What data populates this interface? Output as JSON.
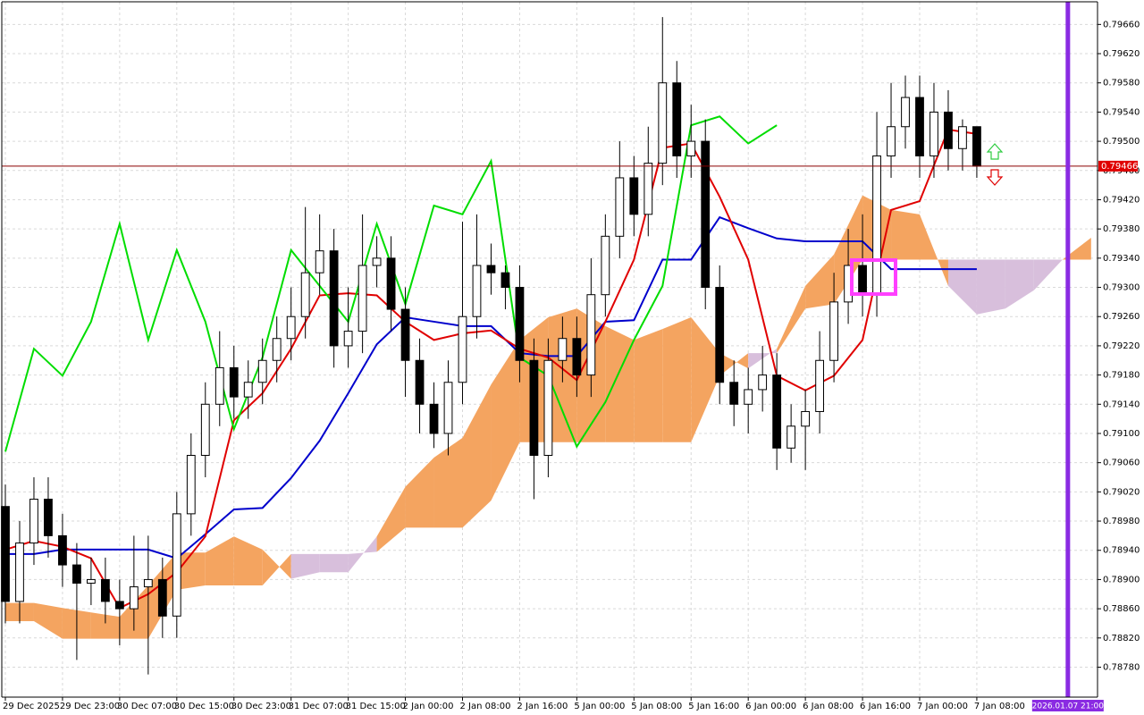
{
  "chart_data": {
    "type": "candlestick",
    "xlim": [
      -0.5,
      152.9
    ],
    "ylim": [
      0.78739,
      0.79691
    ],
    "grid": true,
    "xticks": [
      {
        "value": 0,
        "label": "29 Dec 2025"
      },
      {
        "value": 8,
        "label": "29 Dec 23:00"
      },
      {
        "value": 16,
        "label": "30 Dec 07:00"
      },
      {
        "value": 24,
        "label": "30 Dec 15:00"
      },
      {
        "value": 32,
        "label": "30 Dec 23:00"
      },
      {
        "value": 40,
        "label": "31 Dec 07:00"
      },
      {
        "value": 48,
        "label": "31 Dec 15:00"
      },
      {
        "value": 56,
        "label": "2 Jan 00:00"
      },
      {
        "value": 64,
        "label": "2 Jan 08:00"
      },
      {
        "value": 72,
        "label": "2 Jan 16:00"
      },
      {
        "value": 80,
        "label": "5 Jan 00:00"
      },
      {
        "value": 88,
        "label": "5 Jan 08:00"
      },
      {
        "value": 96,
        "label": "5 Jan 16:00"
      },
      {
        "value": 104,
        "label": "6 Jan 00:00"
      },
      {
        "value": 112,
        "label": "6 Jan 08:00"
      },
      {
        "value": 120,
        "label": "6 Jan 16:00"
      },
      {
        "value": 128,
        "label": "7 Jan 00:00"
      },
      {
        "value": 136,
        "label": "7 Jan 08:00"
      }
    ],
    "yticks": [
      {
        "value": 0.7966,
        "label": "0.79660"
      },
      {
        "value": 0.7962,
        "label": "0.79620"
      },
      {
        "value": 0.7958,
        "label": "0.79580"
      },
      {
        "value": 0.7954,
        "label": "0.79540"
      },
      {
        "value": 0.795,
        "label": "0.79500"
      },
      {
        "value": 0.7946,
        "label": "0.79460"
      },
      {
        "value": 0.7942,
        "label": "0.79420"
      },
      {
        "value": 0.7938,
        "label": "0.79380"
      },
      {
        "value": 0.7934,
        "label": "0.79340"
      },
      {
        "value": 0.793,
        "label": "0.79300"
      },
      {
        "value": 0.7926,
        "label": "0.79260"
      },
      {
        "value": 0.7922,
        "label": "0.79220"
      },
      {
        "value": 0.7918,
        "label": "0.79180"
      },
      {
        "value": 0.7914,
        "label": "0.79140"
      },
      {
        "value": 0.791,
        "label": "0.79100"
      },
      {
        "value": 0.7906,
        "label": "0.79060"
      },
      {
        "value": 0.7902,
        "label": "0.79020"
      },
      {
        "value": 0.7898,
        "label": "0.78980"
      },
      {
        "value": 0.7894,
        "label": "0.78940"
      },
      {
        "value": 0.789,
        "label": "0.78900"
      },
      {
        "value": 0.7886,
        "label": "0.78860"
      },
      {
        "value": 0.7882,
        "label": "0.78820"
      },
      {
        "value": 0.7878,
        "label": "0.78780"
      }
    ],
    "candles": {
      "up_color": "#ffffff",
      "down_color": "#000000",
      "edge_color": "#000000",
      "x": [
        0,
        2,
        4,
        6,
        8,
        10,
        12,
        14,
        16,
        18,
        20,
        22,
        24,
        26,
        28,
        30,
        32,
        34,
        36,
        38,
        40,
        42,
        44,
        46,
        48,
        50,
        52,
        54,
        56,
        58,
        60,
        62,
        64,
        66,
        68,
        70,
        72,
        74,
        76,
        78,
        80,
        82,
        84,
        86,
        88,
        90,
        92,
        94,
        96,
        98,
        100,
        102,
        104,
        106,
        108,
        110,
        112,
        114,
        116,
        118,
        120,
        122,
        124,
        126,
        128,
        130,
        132,
        134,
        136
      ],
      "open": [
        0.79,
        0.7887,
        0.7895,
        0.7901,
        0.7896,
        0.7892,
        0.78895,
        0.789,
        0.7887,
        0.7886,
        0.7889,
        0.789,
        0.7885,
        0.7899,
        0.7907,
        0.7914,
        0.7919,
        0.7915,
        0.7917,
        0.792,
        0.7923,
        0.7926,
        0.7932,
        0.7935,
        0.7922,
        0.7924,
        0.7933,
        0.7934,
        0.7927,
        0.792,
        0.7914,
        0.791,
        0.7917,
        0.7926,
        0.7933,
        0.7932,
        0.793,
        0.792,
        0.7907,
        0.792,
        0.7923,
        0.7918,
        0.7929,
        0.7937,
        0.7945,
        0.794,
        0.7947,
        0.7958,
        0.7948,
        0.795,
        0.793,
        0.7917,
        0.7914,
        0.7916,
        0.7918,
        0.7908,
        0.7911,
        0.7913,
        0.792,
        0.7928,
        0.7933,
        0.7929,
        0.7948,
        0.7952,
        0.7956,
        0.7948,
        0.7954,
        0.7949,
        0.7952
      ],
      "high": [
        0.7903,
        0.7898,
        0.7904,
        0.7904,
        0.7899,
        0.7895,
        0.7893,
        0.7893,
        0.789,
        0.7896,
        0.7896,
        0.7893,
        0.7902,
        0.791,
        0.7917,
        0.7924,
        0.7922,
        0.792,
        0.7923,
        0.7926,
        0.793,
        0.7941,
        0.794,
        0.7938,
        0.793,
        0.794,
        0.7937,
        0.7937,
        0.793,
        0.7923,
        0.7917,
        0.792,
        0.7939,
        0.794,
        0.7936,
        0.7933,
        0.7933,
        0.7923,
        0.7923,
        0.7926,
        0.7926,
        0.7934,
        0.794,
        0.795,
        0.7948,
        0.7952,
        0.7967,
        0.7961,
        0.7955,
        0.7953,
        0.7933,
        0.792,
        0.7919,
        0.7922,
        0.7921,
        0.7914,
        0.7916,
        0.7924,
        0.7932,
        0.7938,
        0.794,
        0.7954,
        0.7958,
        0.7959,
        0.7959,
        0.7958,
        0.7957,
        0.7953,
        0.7952
      ],
      "low": [
        0.7884,
        0.7884,
        0.7892,
        0.7893,
        0.7889,
        0.7879,
        0.78865,
        0.7884,
        0.7881,
        0.7883,
        0.7877,
        0.7882,
        0.7882,
        0.7896,
        0.7904,
        0.7911,
        0.7912,
        0.7912,
        0.7914,
        0.7917,
        0.792,
        0.7923,
        0.7929,
        0.7919,
        0.7919,
        0.7921,
        0.793,
        0.7924,
        0.7915,
        0.791,
        0.7908,
        0.7907,
        0.7914,
        0.7923,
        0.7929,
        0.7927,
        0.7917,
        0.7901,
        0.7904,
        0.7917,
        0.7915,
        0.7915,
        0.7926,
        0.7934,
        0.7937,
        0.7937,
        0.7944,
        0.7945,
        0.7945,
        0.7927,
        0.7914,
        0.7911,
        0.791,
        0.7913,
        0.7905,
        0.7906,
        0.7905,
        0.791,
        0.7917,
        0.7925,
        0.7926,
        0.7926,
        0.7945,
        0.7949,
        0.7945,
        0.7945,
        0.7946,
        0.7946,
        0.7945
      ],
      "close": [
        0.7887,
        0.7895,
        0.7901,
        0.7896,
        0.7892,
        0.78895,
        0.789,
        0.7887,
        0.7886,
        0.7889,
        0.789,
        0.7885,
        0.7899,
        0.7907,
        0.7914,
        0.7919,
        0.7915,
        0.7917,
        0.792,
        0.7923,
        0.7926,
        0.7932,
        0.7935,
        0.7922,
        0.7924,
        0.7933,
        0.7934,
        0.7927,
        0.792,
        0.7914,
        0.791,
        0.7917,
        0.7926,
        0.7933,
        0.7932,
        0.793,
        0.792,
        0.7907,
        0.792,
        0.7923,
        0.7918,
        0.7929,
        0.7937,
        0.7945,
        0.794,
        0.7947,
        0.7958,
        0.7948,
        0.795,
        0.793,
        0.7917,
        0.7914,
        0.7916,
        0.7918,
        0.7908,
        0.7911,
        0.7913,
        0.792,
        0.7928,
        0.7933,
        0.7929,
        0.7948,
        0.7952,
        0.7956,
        0.7948,
        0.7954,
        0.7949,
        0.7952,
        0.79466
      ]
    },
    "lines": [
      {
        "color": "#0000cc",
        "x": [
          0,
          4,
          8,
          12,
          16,
          20,
          24,
          28,
          32,
          36,
          40,
          44,
          48,
          52,
          56,
          60,
          64,
          68,
          72,
          76,
          80,
          84,
          88,
          92,
          96,
          100,
          104,
          108,
          112,
          116,
          120,
          124,
          128,
          132,
          136
        ],
        "values": [
          0.78935,
          0.78935,
          0.78941,
          0.78941,
          0.78941,
          0.78941,
          0.78929,
          0.78962,
          0.78996,
          0.78998,
          0.79039,
          0.7909,
          0.79155,
          0.79222,
          0.79259,
          0.79253,
          0.79247,
          0.79247,
          0.7921,
          0.79206,
          0.79206,
          0.79253,
          0.79255,
          0.79338,
          0.79338,
          0.79396,
          0.79381,
          0.79367,
          0.79363,
          0.79363,
          0.79363,
          0.79325,
          0.79325,
          0.79325,
          0.79325
        ]
      },
      {
        "color": "#e00000",
        "x": [
          0,
          4,
          8,
          12,
          16,
          20,
          24,
          28,
          32,
          36,
          40,
          44,
          48,
          52,
          56,
          60,
          64,
          68,
          72,
          76,
          80,
          84,
          88,
          92,
          96,
          100,
          104,
          108,
          112,
          116,
          120,
          124,
          128,
          132,
          136
        ],
        "values": [
          0.78941,
          0.78953,
          0.78945,
          0.78929,
          0.78861,
          0.7888,
          0.7891,
          0.78959,
          0.79118,
          0.79155,
          0.79216,
          0.79289,
          0.79292,
          0.79289,
          0.79253,
          0.79228,
          0.79237,
          0.79241,
          0.79216,
          0.79204,
          0.79173,
          0.79253,
          0.79338,
          0.79491,
          0.79497,
          0.79424,
          0.79338,
          0.79179,
          0.79159,
          0.79179,
          0.79228,
          0.79406,
          0.79418,
          0.79516,
          0.7951
        ]
      },
      {
        "color": "#00dd00",
        "x": [
          0,
          4,
          8,
          12,
          16,
          20,
          24,
          28,
          32,
          36,
          40,
          44,
          48,
          52,
          56,
          60,
          64,
          68,
          72,
          76,
          80,
          84,
          88,
          92,
          96,
          100,
          104,
          108
        ],
        "values": [
          0.79075,
          0.79216,
          0.79179,
          0.79253,
          0.79387,
          0.79228,
          0.79351,
          0.79253,
          0.79106,
          0.79204,
          0.79351,
          0.79302,
          0.79253,
          0.79387,
          0.79277,
          0.79412,
          0.794,
          0.79473,
          0.79204,
          0.79179,
          0.79082,
          0.79143,
          0.79228,
          0.79302,
          0.79522,
          0.79534,
          0.79497,
          0.79522
        ]
      }
    ],
    "cloud": {
      "bull_color": "#f4a460",
      "bear_color": "#d8bfdc",
      "x": [
        0,
        4,
        8,
        12,
        16,
        20,
        24,
        28,
        32,
        36,
        40,
        44,
        48,
        52,
        56,
        60,
        64,
        68,
        72,
        76,
        80,
        84,
        88,
        92,
        96,
        100,
        104,
        108,
        112,
        116,
        120,
        124,
        128,
        132,
        136,
        140,
        144,
        148,
        152
      ],
      "span_a": [
        0.78868,
        0.78868,
        0.78861,
        0.78855,
        0.78849,
        0.78892,
        0.78937,
        0.78937,
        0.78959,
        0.78941,
        0.78901,
        0.7891,
        0.7891,
        0.78959,
        0.79027,
        0.79067,
        0.79094,
        0.79167,
        0.79228,
        0.79259,
        0.79271,
        0.79247,
        0.79228,
        0.79243,
        0.79259,
        0.7921,
        0.79189,
        0.79216,
        0.79302,
        0.79345,
        0.79426,
        0.79406,
        0.794,
        0.79302,
        0.79263,
        0.79271,
        0.79296,
        0.79338,
        0.79368
      ],
      "span_b": [
        0.78843,
        0.78843,
        0.78819,
        0.78819,
        0.78819,
        0.78819,
        0.78886,
        0.78892,
        0.78892,
        0.78892,
        0.78935,
        0.78935,
        0.78935,
        0.78938,
        0.78971,
        0.78971,
        0.78971,
        0.79008,
        0.79088,
        0.79088,
        0.79088,
        0.79088,
        0.79088,
        0.79088,
        0.79088,
        0.79179,
        0.7921,
        0.7921,
        0.79271,
        0.79277,
        0.79338,
        0.79338,
        0.79338,
        0.79338,
        0.79338,
        0.79338,
        0.79338,
        0.79338,
        0.79338
      ]
    },
    "price_line": {
      "value": 0.79466,
      "label": "0.79466",
      "color": "#8b0000",
      "tag_color": "#e00000"
    },
    "vline": {
      "x": 148.75,
      "label": "2026.01.07 21:00",
      "color": "#8a2be2"
    }
  }
}
